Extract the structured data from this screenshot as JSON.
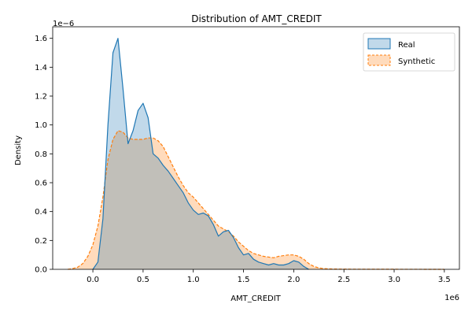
{
  "chart_data": {
    "type": "area",
    "title": "Distribution of AMT_CREDIT",
    "xlabel": "AMT_CREDIT",
    "ylabel": "Density",
    "x_scale_label": "1e6",
    "y_scale_label": "1e−6",
    "xlim": [
      -0.4,
      3.65
    ],
    "ylim": [
      0,
      1.68
    ],
    "xticks": [
      0.0,
      0.5,
      1.0,
      1.5,
      2.0,
      2.5,
      3.0,
      3.5
    ],
    "xtick_labels": [
      "0.0",
      "0.5",
      "1.0",
      "1.5",
      "2.0",
      "2.5",
      "3.0",
      "3.5"
    ],
    "yticks": [
      0.0,
      0.2,
      0.4,
      0.6,
      0.8,
      1.0,
      1.2,
      1.4,
      1.6
    ],
    "ytick_labels": [
      "0.0",
      "0.2",
      "0.4",
      "0.6",
      "0.8",
      "1.0",
      "1.2",
      "1.4",
      "1.6"
    ],
    "grid": false,
    "legend_position": "top-right",
    "series": [
      {
        "name": "Real",
        "color": "#1f77b4",
        "fill": "#1f77b4",
        "line_style": "solid",
        "x": [
          0.0,
          0.05,
          0.1,
          0.15,
          0.2,
          0.25,
          0.3,
          0.35,
          0.4,
          0.45,
          0.5,
          0.55,
          0.6,
          0.65,
          0.7,
          0.75,
          0.8,
          0.85,
          0.9,
          0.95,
          1.0,
          1.05,
          1.1,
          1.15,
          1.2,
          1.25,
          1.3,
          1.35,
          1.4,
          1.45,
          1.5,
          1.55,
          1.6,
          1.65,
          1.7,
          1.75,
          1.8,
          1.85,
          1.9,
          1.95,
          2.0,
          2.05,
          2.1,
          2.15
        ],
        "y": [
          0.0,
          0.05,
          0.35,
          1.0,
          1.5,
          1.6,
          1.25,
          0.87,
          0.96,
          1.1,
          1.15,
          1.05,
          0.8,
          0.77,
          0.72,
          0.68,
          0.63,
          0.58,
          0.53,
          0.46,
          0.41,
          0.38,
          0.39,
          0.37,
          0.31,
          0.23,
          0.26,
          0.27,
          0.22,
          0.15,
          0.1,
          0.11,
          0.07,
          0.05,
          0.04,
          0.03,
          0.04,
          0.03,
          0.03,
          0.04,
          0.06,
          0.05,
          0.02,
          0.0
        ]
      },
      {
        "name": "Synthetic",
        "color": "#ff7f0e",
        "fill": "#ff7f0e",
        "line_style": "dashed",
        "x": [
          -0.25,
          -0.2,
          -0.15,
          -0.1,
          -0.05,
          0.0,
          0.05,
          0.1,
          0.15,
          0.2,
          0.25,
          0.3,
          0.35,
          0.4,
          0.45,
          0.5,
          0.55,
          0.6,
          0.65,
          0.7,
          0.75,
          0.8,
          0.85,
          0.9,
          0.95,
          1.0,
          1.05,
          1.1,
          1.15,
          1.2,
          1.25,
          1.3,
          1.35,
          1.4,
          1.45,
          1.5,
          1.55,
          1.6,
          1.65,
          1.7,
          1.75,
          1.8,
          1.85,
          1.9,
          1.95,
          2.0,
          2.05,
          2.1,
          2.15,
          2.2,
          2.25,
          2.3,
          2.4,
          2.6,
          3.0,
          3.5
        ],
        "y": [
          0.0,
          0.005,
          0.015,
          0.04,
          0.09,
          0.17,
          0.3,
          0.5,
          0.76,
          0.9,
          0.96,
          0.95,
          0.91,
          0.9,
          0.9,
          0.9,
          0.91,
          0.91,
          0.89,
          0.85,
          0.78,
          0.71,
          0.64,
          0.58,
          0.53,
          0.5,
          0.46,
          0.42,
          0.38,
          0.34,
          0.3,
          0.28,
          0.26,
          0.23,
          0.19,
          0.16,
          0.13,
          0.11,
          0.1,
          0.09,
          0.085,
          0.08,
          0.09,
          0.095,
          0.1,
          0.1,
          0.09,
          0.07,
          0.04,
          0.02,
          0.01,
          0.005,
          0.002,
          0.001,
          0.0005,
          0.0
        ]
      }
    ]
  }
}
